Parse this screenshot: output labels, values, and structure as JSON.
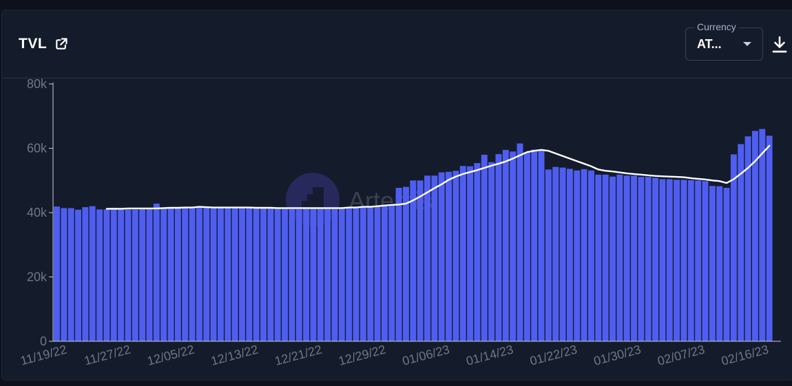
{
  "header": {
    "title": "TVL",
    "currency_label": "Currency",
    "currency_value": "AT..."
  },
  "icons": {
    "external_link": "external-link-icon",
    "download": "download-icon",
    "dropdown": "chevron-down-icon"
  },
  "watermark": "Artemis",
  "colors": {
    "bar": "#4f5ef0",
    "line": "#ffffff",
    "background": "#141b2b",
    "axis_text": "#6f7787"
  },
  "chart_data": {
    "type": "bar",
    "title": "TVL",
    "xlabel": "",
    "ylabel": "",
    "ylim": [
      0,
      80000
    ],
    "y_ticks": [
      "0",
      "20k",
      "40k",
      "60k",
      "80k"
    ],
    "x_tick_labels": [
      "11/19/22",
      "11/27/22",
      "12/05/22",
      "12/13/22",
      "12/21/22",
      "12/29/22",
      "01/06/23",
      "01/14/23",
      "01/22/23",
      "01/30/23",
      "02/07/23",
      "02/16/23"
    ],
    "start_date": "11/19/22",
    "end_date": "02/17/23",
    "grid": false,
    "series": [
      {
        "type": "bar",
        "values": [
          41900,
          41400,
          41400,
          40900,
          41700,
          42000,
          41000,
          41000,
          41500,
          41000,
          41000,
          41000,
          41100,
          41200,
          42800,
          41500,
          41600,
          41500,
          41500,
          41700,
          41700,
          41500,
          41500,
          41500,
          41500,
          41500,
          41500,
          41600,
          41500,
          41500,
          41500,
          41200,
          41500,
          41100,
          41100,
          41500,
          41300,
          41300,
          41500,
          41500,
          41500,
          41600,
          41500,
          41600,
          41700,
          42000,
          42100,
          42500,
          47700,
          48000,
          50000,
          50000,
          51500,
          51500,
          52500,
          52700,
          53000,
          54500,
          54400,
          55400,
          58000,
          55700,
          58200,
          59500,
          59000,
          61500,
          58800,
          59600,
          59600,
          53400,
          54200,
          54000,
          53600,
          53100,
          53500,
          53100,
          51800,
          51800,
          51200,
          51800,
          51500,
          51500,
          51100,
          51100,
          50800,
          50400,
          50400,
          50200,
          50200,
          50100,
          50000,
          49800,
          48300,
          48200,
          47700,
          58100,
          61300,
          63700,
          65400,
          66000,
          63900
        ]
      },
      {
        "type": "line",
        "values": [
          null,
          null,
          null,
          null,
          null,
          null,
          null,
          41200,
          41200,
          41200,
          41300,
          41300,
          41300,
          41300,
          41300,
          41400,
          41500,
          41500,
          41600,
          41600,
          41800,
          41700,
          41600,
          41600,
          41600,
          41600,
          41600,
          41600,
          41500,
          41500,
          41500,
          41400,
          41400,
          41400,
          41400,
          41400,
          41400,
          41400,
          41400,
          41400,
          41400,
          41600,
          41600,
          41800,
          41800,
          42000,
          42200,
          42400,
          42500,
          42800,
          43800,
          45000,
          46300,
          47600,
          48800,
          50200,
          51200,
          52000,
          52600,
          53200,
          53900,
          54600,
          55200,
          55900,
          56800,
          57800,
          58800,
          59200,
          59500,
          59200,
          58400,
          57600,
          56800,
          56000,
          55200,
          54400,
          53400,
          53000,
          52800,
          52500,
          52200,
          52000,
          51800,
          51600,
          51400,
          51300,
          51200,
          51100,
          51000,
          50700,
          50500,
          50300,
          50000,
          49800,
          49200,
          50400,
          52100,
          53900,
          56000,
          58400,
          60800
        ]
      }
    ]
  }
}
